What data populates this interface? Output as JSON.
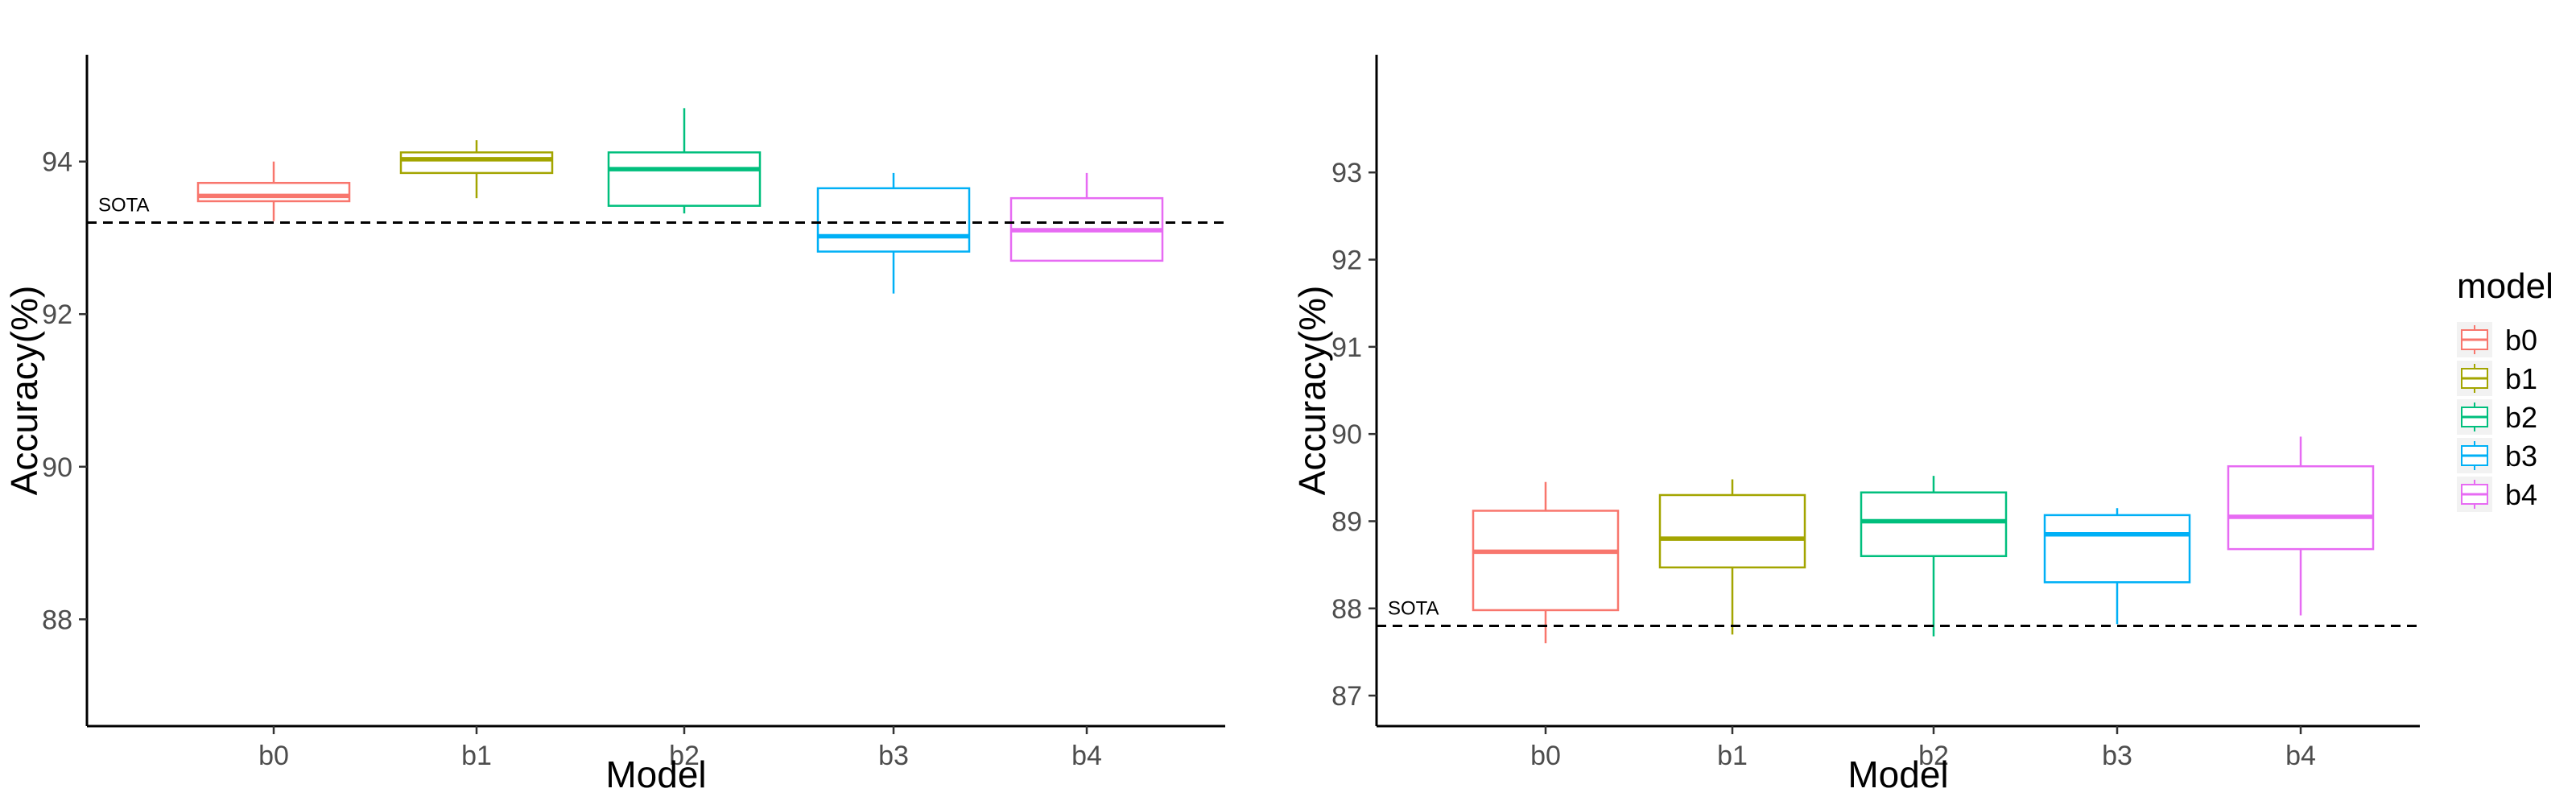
{
  "chart_data": [
    {
      "type": "box",
      "title": "",
      "xlabel": "Model",
      "ylabel": "Accuracy(%)",
      "categories": [
        "b0",
        "b1",
        "b2",
        "b3",
        "b4"
      ],
      "ylim": [
        86.6,
        95.4
      ],
      "yticks": [
        88,
        90,
        92,
        94
      ],
      "grid": false,
      "boxes": [
        {
          "category": "b0",
          "whisker_low": 93.22,
          "q1": 93.48,
          "median": 93.55,
          "q3": 93.72,
          "whisker_high": 94.0
        },
        {
          "category": "b1",
          "whisker_low": 93.52,
          "q1": 93.85,
          "median": 94.03,
          "q3": 94.12,
          "whisker_high": 94.28
        },
        {
          "category": "b2",
          "whisker_low": 93.32,
          "q1": 93.42,
          "median": 93.9,
          "q3": 94.12,
          "whisker_high": 94.7
        },
        {
          "category": "b3",
          "whisker_low": 92.27,
          "q1": 92.82,
          "median": 93.02,
          "q3": 93.65,
          "whisker_high": 93.85
        },
        {
          "category": "b4",
          "whisker_low": 92.7,
          "q1": 92.7,
          "median": 93.1,
          "q3": 93.52,
          "whisker_high": 93.85
        }
      ],
      "reference_line": {
        "label": "SOTA",
        "value": 93.2,
        "style": "dashed"
      }
    },
    {
      "type": "box",
      "title": "",
      "xlabel": "Model",
      "ylabel": "Accuracy(%)",
      "categories": [
        "b0",
        "b1",
        "b2",
        "b3",
        "b4"
      ],
      "ylim": [
        86.65,
        94.35
      ],
      "yticks": [
        87,
        88,
        89,
        90,
        91,
        92,
        93
      ],
      "grid": false,
      "boxes": [
        {
          "category": "b0",
          "whisker_low": 87.6,
          "q1": 87.98,
          "median": 88.65,
          "q3": 89.12,
          "whisker_high": 89.45
        },
        {
          "category": "b1",
          "whisker_low": 87.7,
          "q1": 88.47,
          "median": 88.8,
          "q3": 89.3,
          "whisker_high": 89.48
        },
        {
          "category": "b2",
          "whisker_low": 87.68,
          "q1": 88.6,
          "median": 89.0,
          "q3": 89.33,
          "whisker_high": 89.52
        },
        {
          "category": "b3",
          "whisker_low": 87.82,
          "q1": 88.3,
          "median": 88.85,
          "q3": 89.07,
          "whisker_high": 89.15
        },
        {
          "category": "b4",
          "whisker_low": 87.92,
          "q1": 88.68,
          "median": 89.05,
          "q3": 89.63,
          "whisker_high": 89.97
        }
      ],
      "reference_line": {
        "label": "SOTA",
        "value": 87.8,
        "style": "dashed"
      }
    }
  ],
  "legend": {
    "title": "model",
    "placement": "right",
    "items": [
      {
        "label": "b0",
        "color": "#F8766D"
      },
      {
        "label": "b1",
        "color": "#A3A500"
      },
      {
        "label": "b2",
        "color": "#00BF7D"
      },
      {
        "label": "b3",
        "color": "#00B0F6"
      },
      {
        "label": "b4",
        "color": "#E76BF3"
      }
    ]
  }
}
